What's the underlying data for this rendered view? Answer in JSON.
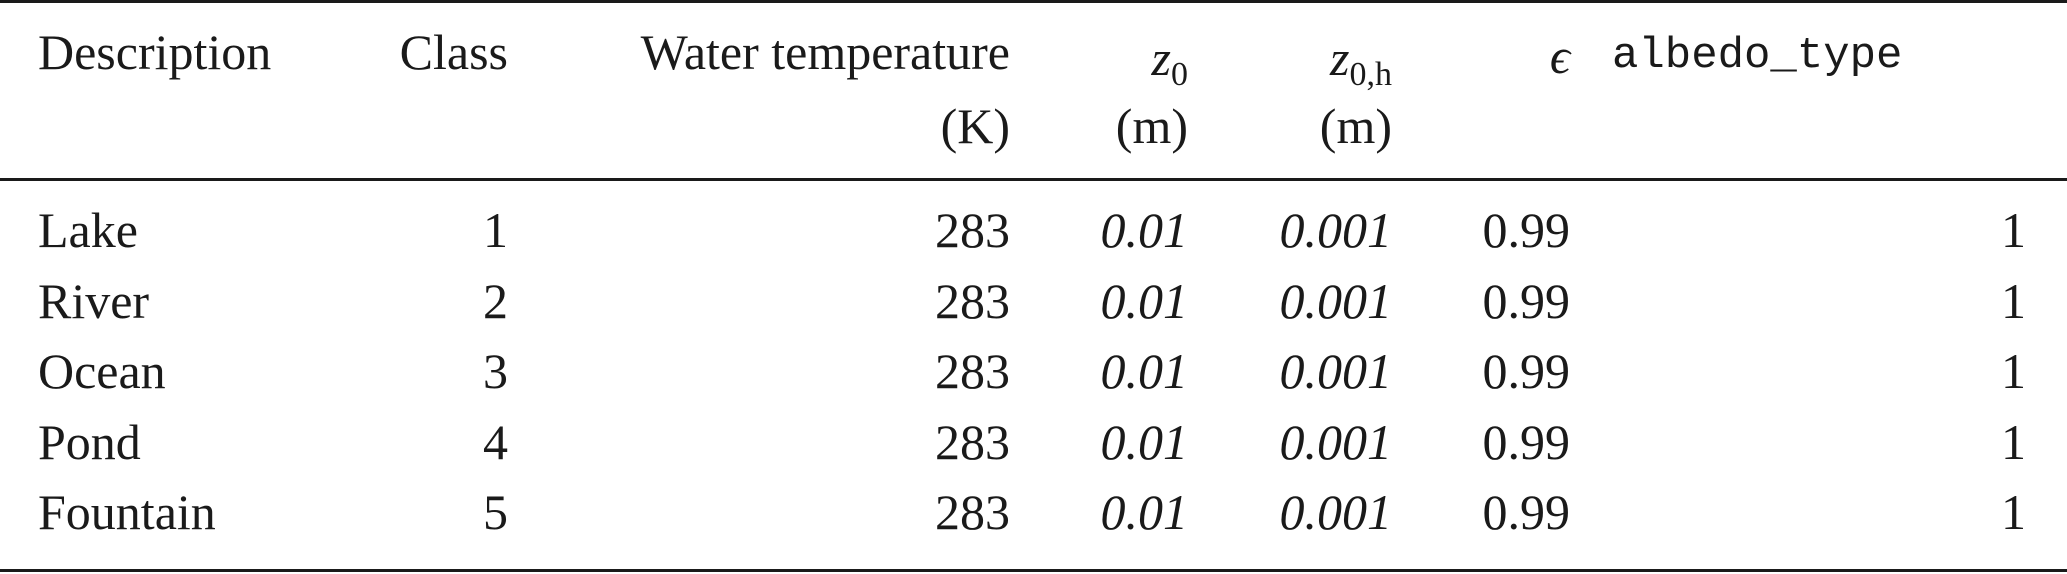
{
  "table": {
    "headers": {
      "description": "Description",
      "class": "Class",
      "water_temp_line1": "Water temperature",
      "water_temp_line2": "(K)",
      "z0_symbol": "z",
      "z0_sub": "0",
      "z0_unit": "(m)",
      "z0h_symbol": "z",
      "z0h_sub": "0,h",
      "z0h_unit": "(m)",
      "epsilon": "ϵ",
      "albedo_type": "albedo_type"
    },
    "rows": [
      {
        "description": "Lake",
        "class": "1",
        "water_temp": "283",
        "z0": "0.01",
        "z0h": "0.001",
        "epsilon": "0.99",
        "albedo_type": "1"
      },
      {
        "description": "River",
        "class": "2",
        "water_temp": "283",
        "z0": "0.01",
        "z0h": "0.001",
        "epsilon": "0.99",
        "albedo_type": "1"
      },
      {
        "description": "Ocean",
        "class": "3",
        "water_temp": "283",
        "z0": "0.01",
        "z0h": "0.001",
        "epsilon": "0.99",
        "albedo_type": "1"
      },
      {
        "description": "Pond",
        "class": "4",
        "water_temp": "283",
        "z0": "0.01",
        "z0h": "0.001",
        "epsilon": "0.99",
        "albedo_type": "1"
      },
      {
        "description": "Fountain",
        "class": "5",
        "water_temp": "283",
        "z0": "0.01",
        "z0h": "0.001",
        "epsilon": "0.99",
        "albedo_type": "1"
      }
    ]
  }
}
